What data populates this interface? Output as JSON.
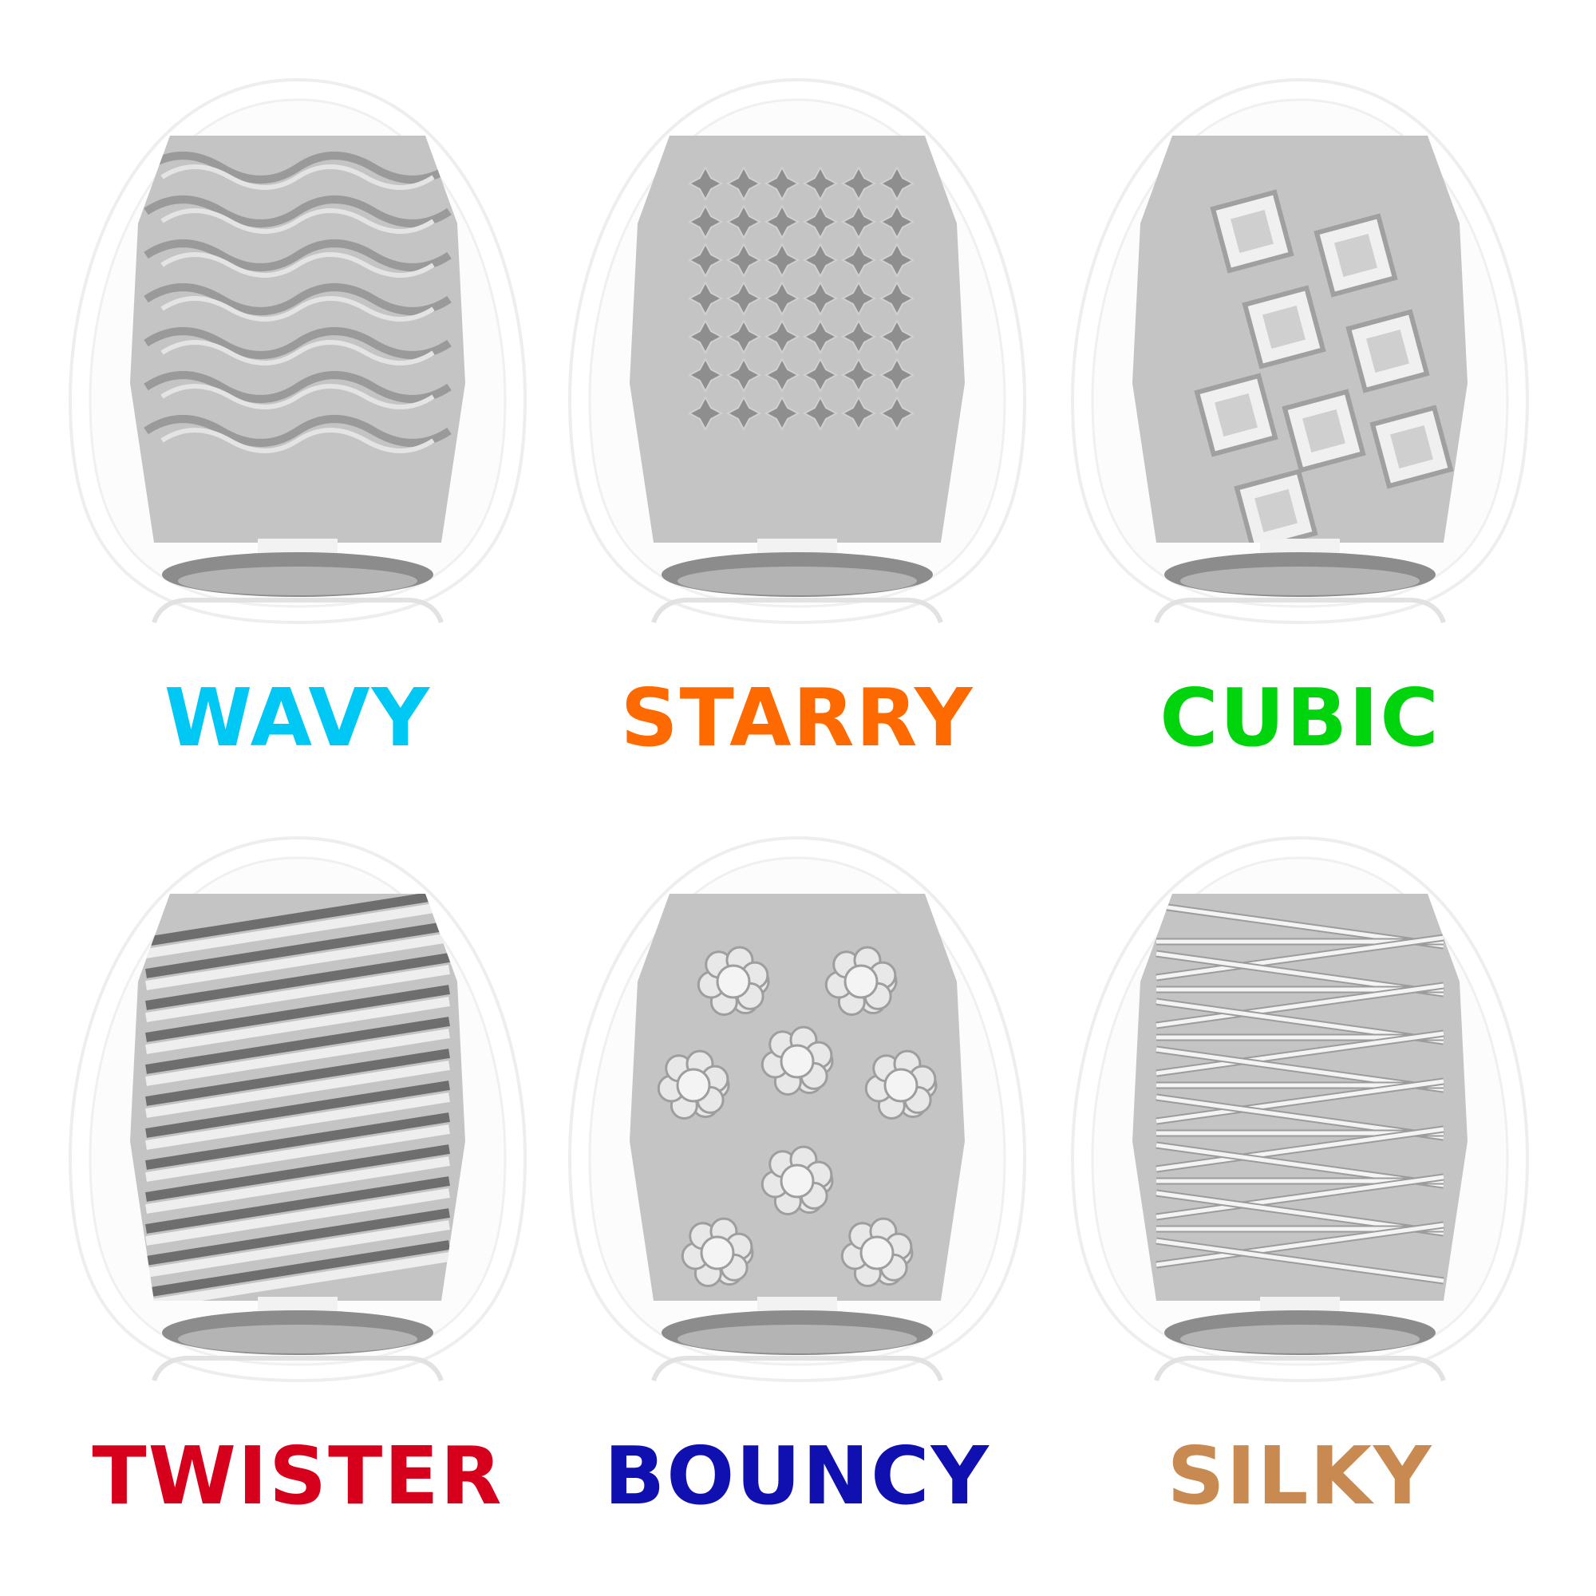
{
  "products": [
    {
      "name": "WAVY",
      "color": "#00c8f5",
      "texture": "waves"
    },
    {
      "name": "STARRY",
      "color": "#ff6a00",
      "texture": "stars"
    },
    {
      "name": "CUBIC",
      "color": "#00d40c",
      "texture": "cubes"
    },
    {
      "name": "TWISTER",
      "color": "#d6001c",
      "texture": "spirals"
    },
    {
      "name": "BOUNCY",
      "color": "#1010b0",
      "texture": "bumps"
    },
    {
      "name": "SILKY",
      "color": "#c88a50",
      "texture": "strands"
    }
  ]
}
